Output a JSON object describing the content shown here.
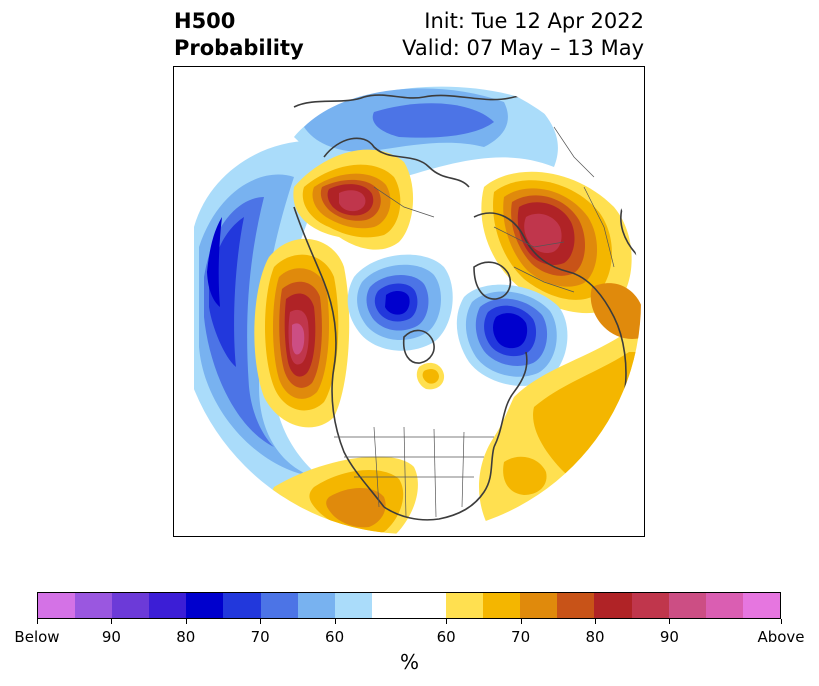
{
  "title": {
    "left_line1": "H500",
    "left_line2": "Probability",
    "right_line1": "Init: Tue 12 Apr 2022",
    "right_line2": "Valid: 07 May – 13 May"
  },
  "colorbar": {
    "label": "%",
    "ticks": [
      "Below",
      "90",
      "80",
      "70",
      "60",
      "60",
      "70",
      "80",
      "90",
      "Above"
    ],
    "colors": [
      "#d472e6",
      "#9a57e0",
      "#6c3ad8",
      "#3c1ed6",
      "#0000cd",
      "#2238dc",
      "#4c74e6",
      "#78b2f0",
      "#aadcfa",
      "#ffffff",
      "#ffe050",
      "#f4b600",
      "#e08a0c",
      "#c85318",
      "#b02326",
      "#c0364c",
      "#cc4e84",
      "#da5eb2",
      "#e676e0"
    ]
  },
  "map": {
    "projection": "north-polar-stereographic",
    "field": "500 hPa height anomaly probability",
    "features": [
      {
        "name": "Above-normal over North Pacific / Alaska west",
        "category": "above"
      },
      {
        "name": "Above-normal over Siberia / Arctic",
        "category": "above"
      },
      {
        "name": "Above-normal over Scandinavia / NW Russia",
        "category": "above"
      },
      {
        "name": "Above-normal over North Atlantic",
        "category": "above"
      },
      {
        "name": "Above-normal over southwest US / Mexico",
        "category": "above"
      },
      {
        "name": "Below-normal over Pacific",
        "category": "below"
      },
      {
        "name": "Below-normal over central Arctic",
        "category": "below"
      },
      {
        "name": "Below-normal over Greenland Sea",
        "category": "below"
      },
      {
        "name": "Below-normal over northern Asia",
        "category": "below"
      }
    ]
  }
}
